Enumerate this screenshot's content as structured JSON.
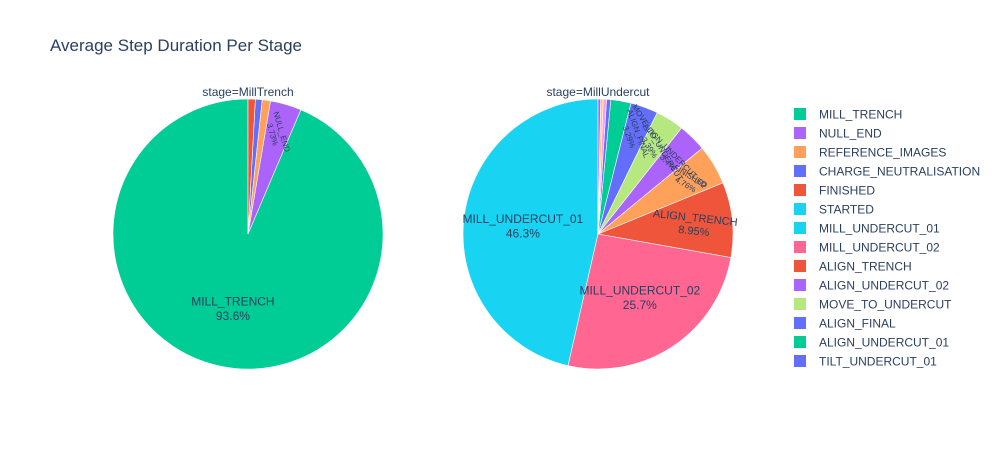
{
  "chart_data": {
    "type": "pie",
    "title": "Average Step Duration Per Stage",
    "subplots": [
      {
        "title": "stage=MillTrench",
        "slices": [
          {
            "label": "MILL_TRENCH",
            "value": 93.6,
            "text": "93.6%",
            "color": "#00cc96"
          },
          {
            "label": "NULL_END",
            "value": 3.73,
            "text": "3.73%",
            "color": "#ab63fa"
          },
          {
            "label": "REFERENCE_IMAGES",
            "value": 1.0,
            "text": "",
            "color": "#ffa15a"
          },
          {
            "label": "CHARGE_NEUTRALISATION",
            "value": 0.8,
            "text": "",
            "color": "#636efa"
          },
          {
            "label": "FINISHED",
            "value": 0.87,
            "text": "",
            "color": "#ef553b"
          }
        ]
      },
      {
        "title": "stage=MillUndercut",
        "slices": [
          {
            "label": "MILL_UNDERCUT_01",
            "value": 46.3,
            "text": "46.3%",
            "color": "#19d3f3"
          },
          {
            "label": "MILL_UNDERCUT_02",
            "value": 25.7,
            "text": "25.7%",
            "color": "#ff6692"
          },
          {
            "label": "ALIGN_TRENCH",
            "value": 8.95,
            "text": "8.95%",
            "color": "#ef553b"
          },
          {
            "label": "FINISHED",
            "value": 4.76,
            "text": "4.76%",
            "color": "#ffa15a"
          },
          {
            "label": "ALIGN_UNDERCUT_02",
            "value": 3.4,
            "text": "3.4%",
            "color": "#ab63fa"
          },
          {
            "label": "MOVE_TO_UNDERCUT",
            "value": 3.39,
            "text": "3.39%",
            "color": "#b6e880"
          },
          {
            "label": "ALIGN_FINAL",
            "value": 3.29,
            "text": "3.29%",
            "color": "#636efa"
          },
          {
            "label": "ALIGN_UNDERCUT_01",
            "value": 2.4,
            "text": "",
            "color": "#00cc96"
          },
          {
            "label": "TILT_UNDERCUT_01",
            "value": 0.5,
            "text": "",
            "color": "#636efa"
          },
          {
            "label": "REFERENCE_IMAGES",
            "value": 0.4,
            "text": "",
            "color": "#ff97ff"
          },
          {
            "label": "CHARGE_NEUTRALISATION",
            "value": 0.3,
            "text": "",
            "color": "#fecb52"
          },
          {
            "label": "NULL_END",
            "value": 0.31,
            "text": "",
            "color": "#ab63fa"
          }
        ]
      }
    ],
    "legend": {
      "placement": "right",
      "items": [
        {
          "label": "MILL_TRENCH",
          "color": "#00cc96"
        },
        {
          "label": "NULL_END",
          "color": "#ab63fa"
        },
        {
          "label": "REFERENCE_IMAGES",
          "color": "#ffa15a"
        },
        {
          "label": "CHARGE_NEUTRALISATION",
          "color": "#636efa"
        },
        {
          "label": "FINISHED",
          "color": "#ef553b"
        },
        {
          "label": "STARTED",
          "color": "#19d3f3"
        },
        {
          "label": "MILL_UNDERCUT_01",
          "color": "#19d3f3"
        },
        {
          "label": "MILL_UNDERCUT_02",
          "color": "#ff6692"
        },
        {
          "label": "ALIGN_TRENCH",
          "color": "#ef553b"
        },
        {
          "label": "ALIGN_UNDERCUT_02",
          "color": "#ab63fa"
        },
        {
          "label": "MOVE_TO_UNDERCUT",
          "color": "#b6e880"
        },
        {
          "label": "ALIGN_FINAL",
          "color": "#636efa"
        },
        {
          "label": "ALIGN_UNDERCUT_01",
          "color": "#00cc96"
        },
        {
          "label": "TILT_UNDERCUT_01",
          "color": "#636efa"
        }
      ]
    }
  }
}
